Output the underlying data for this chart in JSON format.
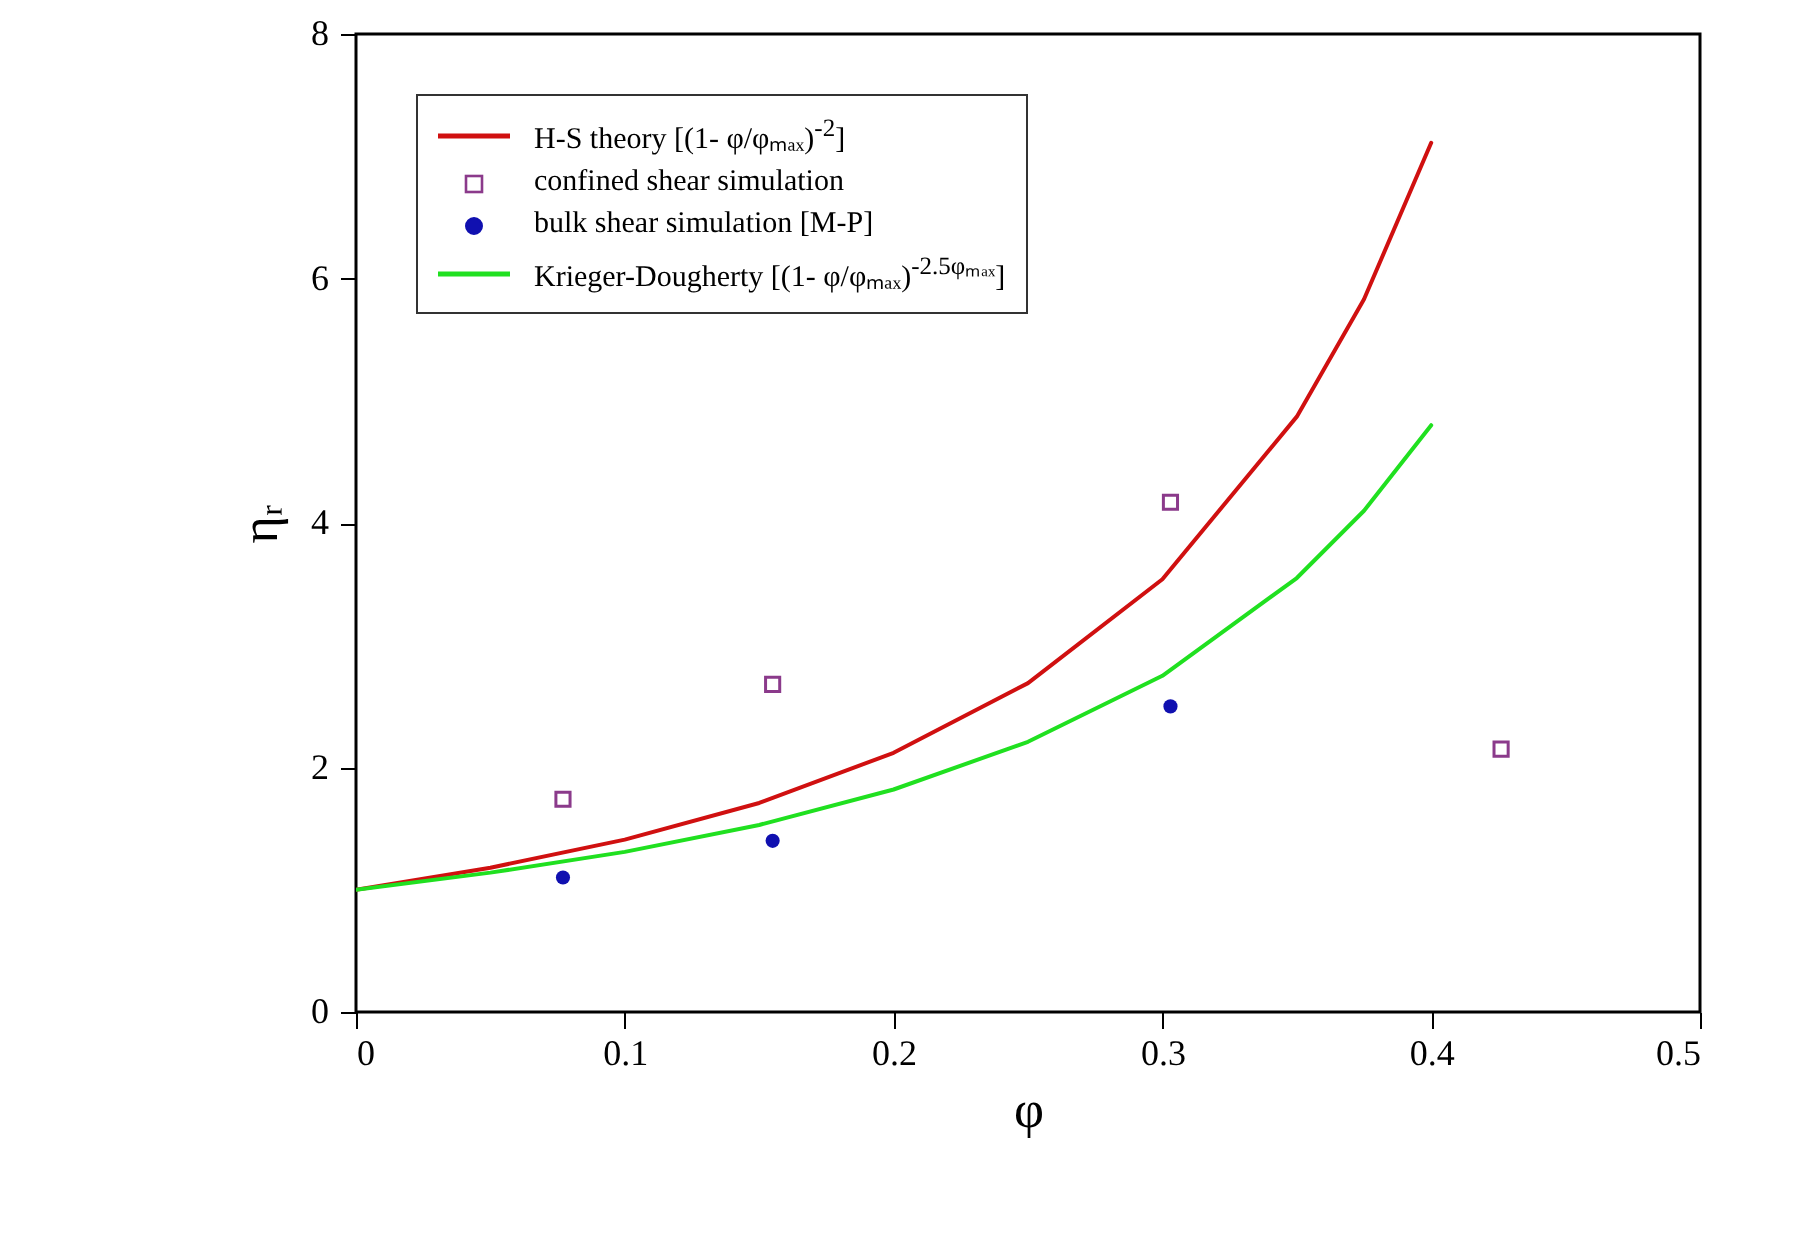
{
  "chart_data": {
    "type": "line",
    "xlabel": "φ",
    "ylabel": "ηᵣ",
    "xlim": [
      0,
      0.5
    ],
    "xticks": [
      0,
      0.1,
      0.2,
      0.3,
      0.4,
      0.5
    ],
    "ylim": [
      0,
      8
    ],
    "yticks": [
      0,
      2,
      4,
      6,
      8
    ],
    "grid": false,
    "legend": "top left",
    "series": [
      {
        "name": "H-S theory [(1- φ/φₘₐₓ)$^{-2}$]",
        "color": "#d01010",
        "line_style": "solid",
        "x": [
          0,
          0.05,
          0.1,
          0.15,
          0.2,
          0.25,
          0.3,
          0.35,
          0.375,
          0.4
        ],
        "values": [
          1,
          1.18,
          1.41,
          1.71,
          2.12,
          2.69,
          3.54,
          4.87,
          5.83,
          7.11
        ]
      },
      {
        "name": "confined shear simulation",
        "type": "scatter",
        "marker": "square",
        "color": "#8b3a8b",
        "x": [
          0.077,
          0.155,
          0.303,
          0.426
        ],
        "values": [
          1.74,
          2.68,
          4.17,
          2.15
        ]
      },
      {
        "name": "bulk shear simulation [M-P]",
        "type": "scatter",
        "marker": "circle",
        "color": "#1010b0",
        "x": [
          0.077,
          0.155,
          0.303
        ],
        "values": [
          1.1,
          1.4,
          2.5
        ]
      },
      {
        "name": "Krieger-Dougherty [(1- φ/φₘₐₓ)$^{-2.5φₘₐₓ}$]",
        "color": "#20e020",
        "line_style": "solid",
        "x": [
          0,
          0.05,
          0.1,
          0.15,
          0.2,
          0.25,
          0.3,
          0.35,
          0.375,
          0.4
        ],
        "values": [
          1,
          1.14,
          1.31,
          1.53,
          1.82,
          2.21,
          2.75,
          3.55,
          4.1,
          4.8
        ]
      }
    ]
  }
}
